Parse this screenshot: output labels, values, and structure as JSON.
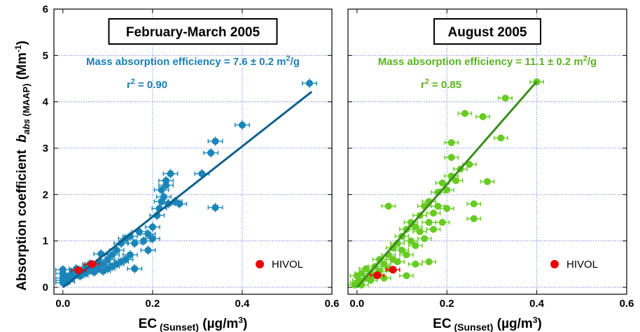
{
  "chart_data": [
    {
      "type": "scatter",
      "title": "February-March 2005",
      "xlabel": "EC",
      "xlabel_sub": "(Sunset)",
      "xlabel_unit": "(µg/m",
      "xlabel_unit_sup": "3",
      "xlabel_unit_end": ")",
      "xlim": [
        -0.02,
        0.6
      ],
      "ylim": [
        -0.15,
        6
      ],
      "xticks": [
        "0.0",
        "0.2",
        "0.4",
        "0.6"
      ],
      "xtick_values": [
        0,
        0.2,
        0.4,
        0.6
      ],
      "yticks": [
        "0",
        "1",
        "2",
        "3",
        "4",
        "5",
        "6"
      ],
      "ytick_values": [
        0,
        1,
        2,
        3,
        4,
        5,
        6
      ],
      "grid": true,
      "annotation_mae": "Mass absorption efficiency = 7.6 ± 0.2 m",
      "annotation_mae_sup": "2",
      "annotation_mae_end": "/g",
      "annotation_r2": "r",
      "annotation_r2_sup": "2",
      "annotation_r2_end": " = 0.90",
      "fit": {
        "slope": 7.6,
        "x_range": [
          0.0,
          0.555
        ]
      },
      "series_color": "#1a85b8",
      "fit_color": "#0d5f8c",
      "xerr": 0.016,
      "yerr": 0.1,
      "points": [
        [
          0.0,
          0.1
        ],
        [
          0.0,
          0.15
        ],
        [
          0.0,
          0.2
        ],
        [
          0.0,
          0.3
        ],
        [
          0.0,
          0.38
        ],
        [
          0.01,
          0.12
        ],
        [
          0.01,
          0.22
        ],
        [
          0.02,
          0.2
        ],
        [
          0.02,
          0.3
        ],
        [
          0.03,
          0.28
        ],
        [
          0.03,
          0.4
        ],
        [
          0.04,
          0.35
        ],
        [
          0.04,
          0.25
        ],
        [
          0.05,
          0.42
        ],
        [
          0.05,
          0.3
        ],
        [
          0.06,
          0.36
        ],
        [
          0.06,
          0.5
        ],
        [
          0.07,
          0.45
        ],
        [
          0.07,
          0.33
        ],
        [
          0.08,
          0.4
        ],
        [
          0.08,
          0.55
        ],
        [
          0.085,
          0.72
        ],
        [
          0.09,
          0.35
        ],
        [
          0.09,
          0.5
        ],
        [
          0.1,
          0.6
        ],
        [
          0.1,
          0.4
        ],
        [
          0.11,
          0.45
        ],
        [
          0.11,
          0.7
        ],
        [
          0.12,
          0.5
        ],
        [
          0.12,
          0.8
        ],
        [
          0.13,
          0.55
        ],
        [
          0.13,
          0.95
        ],
        [
          0.14,
          0.6
        ],
        [
          0.14,
          1.05
        ],
        [
          0.15,
          0.7
        ],
        [
          0.15,
          1.1
        ],
        [
          0.16,
          0.4
        ],
        [
          0.16,
          0.95
        ],
        [
          0.17,
          1.2
        ],
        [
          0.18,
          1.0
        ],
        [
          0.19,
          1.15
        ],
        [
          0.19,
          0.8
        ],
        [
          0.2,
          1.3
        ],
        [
          0.2,
          1.05
        ],
        [
          0.21,
          1.55
        ],
        [
          0.215,
          1.7
        ],
        [
          0.22,
          1.85
        ],
        [
          0.22,
          2.1
        ],
        [
          0.225,
          1.95
        ],
        [
          0.23,
          2.2
        ],
        [
          0.23,
          2.3
        ],
        [
          0.235,
          1.8
        ],
        [
          0.24,
          2.45
        ],
        [
          0.25,
          1.85
        ],
        [
          0.26,
          1.8
        ],
        [
          0.31,
          2.45
        ],
        [
          0.33,
          2.9
        ],
        [
          0.34,
          3.15
        ],
        [
          0.34,
          1.72
        ],
        [
          0.4,
          3.5
        ],
        [
          0.55,
          4.4
        ]
      ],
      "hivol_points": [
        [
          0.035,
          0.37
        ],
        [
          0.065,
          0.5
        ]
      ],
      "legend": {
        "label": "HIVOL",
        "color": "#ee0000",
        "position": "bottom-right"
      }
    },
    {
      "type": "scatter",
      "title": "August 2005",
      "xlabel": "EC",
      "xlabel_sub": "(Sunset)",
      "xlabel_unit": "(µg/m",
      "xlabel_unit_sup": "3",
      "xlabel_unit_end": ")",
      "xlim": [
        -0.02,
        0.6
      ],
      "ylim": [
        -0.15,
        6
      ],
      "xticks": [
        "0.0",
        "0.2",
        "0.4",
        "0.6"
      ],
      "xtick_values": [
        0,
        0.2,
        0.4,
        0.6
      ],
      "yticks": [
        "0",
        "1",
        "2",
        "3",
        "4",
        "5",
        "6"
      ],
      "ytick_values": [
        0,
        1,
        2,
        3,
        4,
        5,
        6
      ],
      "grid": true,
      "annotation_mae": "Mass absorption efficiency = 11.1 ± 0.2 m",
      "annotation_mae_sup": "2",
      "annotation_mae_end": "/g",
      "annotation_r2": "r",
      "annotation_r2_sup": "2",
      "annotation_r2_end": " = 0.85",
      "fit": {
        "slope": 11.1,
        "x_range": [
          0.0,
          0.4
        ]
      },
      "series_color": "#66cc22",
      "fit_color": "#3c8c1e",
      "xerr": 0.015,
      "yerr": 0.06,
      "points": [
        [
          -0.005,
          0.05
        ],
        [
          0.0,
          0.1
        ],
        [
          0.0,
          0.25
        ],
        [
          0.005,
          0.15
        ],
        [
          0.01,
          0.3
        ],
        [
          0.01,
          0.05
        ],
        [
          0.02,
          0.2
        ],
        [
          0.02,
          0.4
        ],
        [
          0.03,
          0.3
        ],
        [
          0.03,
          0.15
        ],
        [
          0.04,
          0.45
        ],
        [
          0.04,
          0.25
        ],
        [
          0.05,
          0.6
        ],
        [
          0.05,
          0.35
        ],
        [
          0.06,
          0.5
        ],
        [
          0.06,
          0.2
        ],
        [
          0.07,
          0.7
        ],
        [
          0.07,
          0.4
        ],
        [
          0.08,
          0.6
        ],
        [
          0.08,
          0.85
        ],
        [
          0.09,
          0.55
        ],
        [
          0.09,
          0.95
        ],
        [
          0.1,
          0.8
        ],
        [
          0.1,
          1.1
        ],
        [
          0.11,
          0.7
        ],
        [
          0.11,
          1.25
        ],
        [
          0.12,
          1.0
        ],
        [
          0.12,
          1.4
        ],
        [
          0.13,
          0.9
        ],
        [
          0.13,
          1.3
        ],
        [
          0.14,
          1.2
        ],
        [
          0.14,
          1.55
        ],
        [
          0.15,
          1.05
        ],
        [
          0.15,
          1.75
        ],
        [
          0.16,
          1.4
        ],
        [
          0.16,
          1.85
        ],
        [
          0.17,
          1.25
        ],
        [
          0.17,
          1.6
        ],
        [
          0.18,
          1.75
        ],
        [
          0.18,
          2.05
        ],
        [
          0.19,
          1.4
        ],
        [
          0.19,
          2.25
        ],
        [
          0.2,
          2.1
        ],
        [
          0.2,
          1.7
        ],
        [
          0.21,
          2.4
        ],
        [
          0.21,
          2.8
        ],
        [
          0.21,
          3.12
        ],
        [
          0.22,
          2.3
        ],
        [
          0.23,
          2.55
        ],
        [
          0.24,
          3.75
        ],
        [
          0.25,
          2.65
        ],
        [
          0.26,
          1.48
        ],
        [
          0.26,
          1.8
        ],
        [
          0.28,
          3.68
        ],
        [
          0.29,
          2.28
        ],
        [
          0.32,
          3.22
        ],
        [
          0.33,
          4.08
        ],
        [
          0.4,
          4.43
        ],
        [
          0.07,
          1.75
        ],
        [
          0.11,
          0.25
        ],
        [
          0.13,
          0.5
        ],
        [
          0.16,
          0.55
        ]
      ],
      "hivol_points": [
        [
          0.045,
          0.26
        ],
        [
          0.08,
          0.38
        ]
      ],
      "legend": {
        "label": "HIVOL",
        "color": "#ee0000",
        "position": "bottom-right"
      }
    }
  ],
  "ylabel": "Absorption coefficient",
  "ylabel_italic": "b",
  "ylabel_italic_sub": "abs",
  "ylabel_sub": " (MAAP)",
  "ylabel_unit": " (Mm",
  "ylabel_unit_sup": "-1",
  "ylabel_unit_end": ")"
}
